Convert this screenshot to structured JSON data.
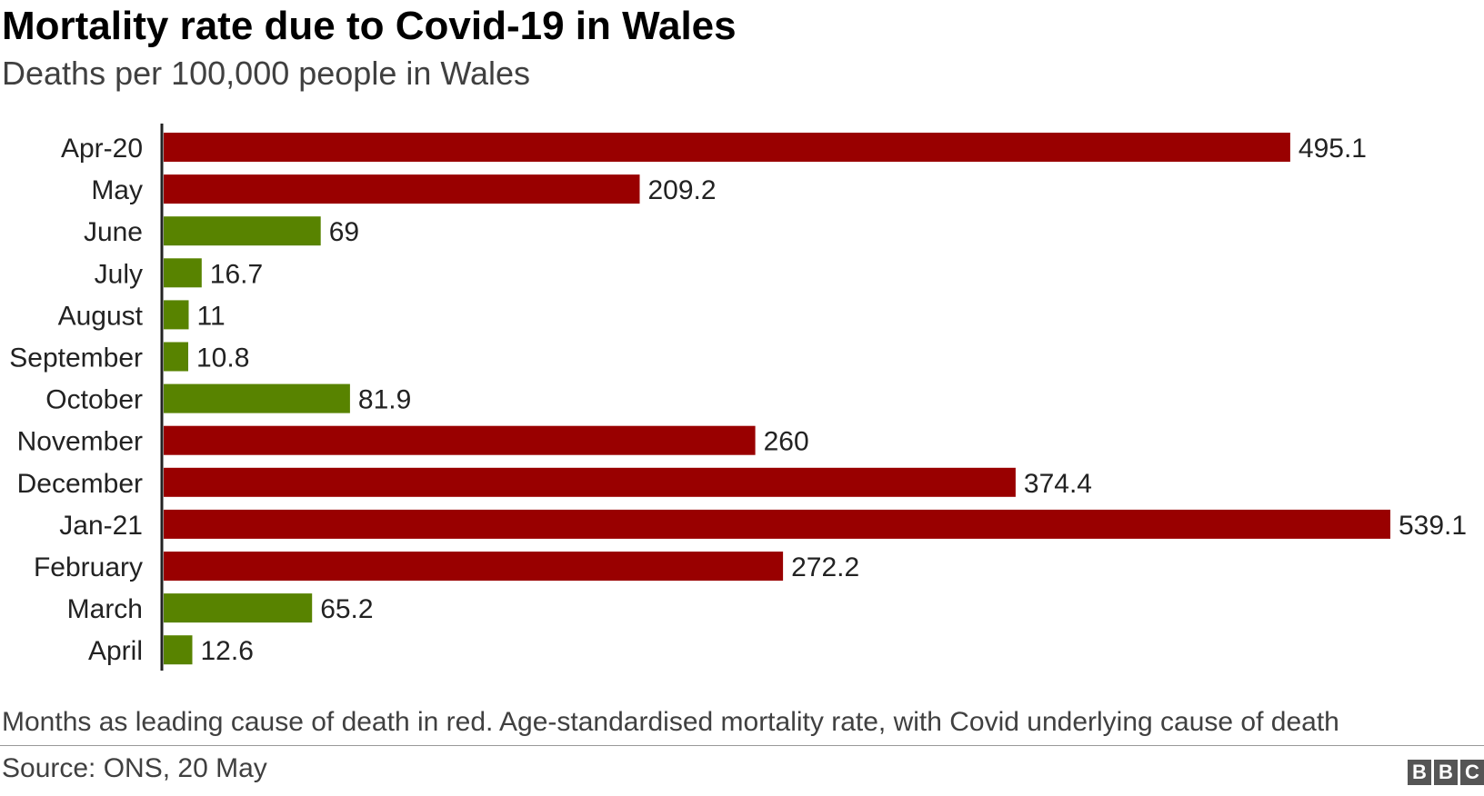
{
  "chart_data": {
    "type": "bar",
    "orientation": "horizontal",
    "title": "Mortality rate due to Covid-19 in Wales",
    "subtitle": "Deaths per 100,000 people in Wales",
    "categories": [
      "Apr-20",
      "May",
      "June",
      "July",
      "August",
      "September",
      "October",
      "November",
      "December",
      "Jan-21",
      "February",
      "March",
      "April"
    ],
    "values": [
      495.1,
      209.2,
      69,
      16.7,
      11,
      10.8,
      81.9,
      260,
      374.4,
      539.1,
      272.2,
      65.2,
      12.6
    ],
    "value_labels": [
      "495.1",
      "209.2",
      "69",
      "16.7",
      "11",
      "10.8",
      "81.9",
      "260",
      "374.4",
      "539.1",
      "272.2",
      "65.2",
      "12.6"
    ],
    "leading_cause": [
      true,
      true,
      false,
      false,
      false,
      false,
      false,
      true,
      true,
      true,
      true,
      false,
      false
    ],
    "colors": {
      "leading": "#990000",
      "other": "#588300",
      "axis": "#222222"
    },
    "xlim": [
      0,
      539.1
    ],
    "grid": false,
    "legend": "none"
  },
  "footer": {
    "note": "Months as leading cause of death in red. Age-standardised mortality rate, with Covid underlying cause of death",
    "source": "Source: ONS, 20 May",
    "logo_letters": [
      "B",
      "B",
      "C"
    ]
  }
}
